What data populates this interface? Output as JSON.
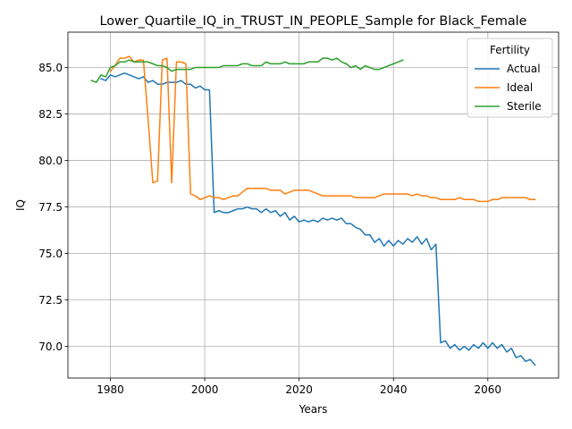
{
  "chart_data": {
    "type": "line",
    "title": "Lower_Quartile_IQ_in_TRUST_IN_PEOPLE_Sample for Black_Female",
    "xlabel": "Years",
    "ylabel": "IQ",
    "xlim": [
      1971,
      2075
    ],
    "ylim": [
      68.3,
      86.9
    ],
    "xticks": [
      1980,
      2000,
      2020,
      2040,
      2060
    ],
    "xtick_labels": [
      "1980",
      "2000",
      "2020",
      "2040",
      "2060"
    ],
    "yticks": [
      70.0,
      72.5,
      75.0,
      77.5,
      80.0,
      82.5,
      85.0
    ],
    "ytick_labels": [
      "70.0",
      "72.5",
      "75.0",
      "77.5",
      "80.0",
      "82.5",
      "85.0"
    ],
    "grid": true,
    "legend": {
      "title": "Fertility",
      "position": "top-right"
    },
    "series": [
      {
        "name": "Actual",
        "color": "#1f77b4",
        "x": [
          1978,
          1979,
          1980,
          1981,
          1982,
          1983,
          1984,
          1985,
          1986,
          1987,
          1988,
          1989,
          1990,
          1991,
          1992,
          1993,
          1994,
          1995,
          1996,
          1997,
          1998,
          1999,
          2000,
          2001,
          2002,
          2003,
          2004,
          2005,
          2006,
          2007,
          2008,
          2009,
          2010,
          2011,
          2012,
          2013,
          2014,
          2015,
          2016,
          2017,
          2018,
          2019,
          2020,
          2021,
          2022,
          2023,
          2024,
          2025,
          2026,
          2027,
          2028,
          2029,
          2030,
          2031,
          2032,
          2033,
          2034,
          2035,
          2036,
          2037,
          2038,
          2039,
          2040,
          2041,
          2042,
          2043,
          2044,
          2045,
          2046,
          2047,
          2048,
          2049,
          2050,
          2051,
          2052,
          2053,
          2054,
          2055,
          2056,
          2057,
          2058,
          2059,
          2060,
          2061,
          2062,
          2063,
          2064,
          2065,
          2066,
          2067,
          2068,
          2069,
          2070
        ],
        "y": [
          84.4,
          84.3,
          84.6,
          84.5,
          84.6,
          84.7,
          84.6,
          84.5,
          84.4,
          84.5,
          84.2,
          84.3,
          84.1,
          84.1,
          84.2,
          84.2,
          84.2,
          84.3,
          84.1,
          84.1,
          83.9,
          84.0,
          83.8,
          83.8,
          77.2,
          77.3,
          77.2,
          77.2,
          77.3,
          77.4,
          77.4,
          77.5,
          77.4,
          77.4,
          77.2,
          77.4,
          77.2,
          77.3,
          77.0,
          77.2,
          76.8,
          77.0,
          76.7,
          76.8,
          76.7,
          76.8,
          76.7,
          76.9,
          76.8,
          76.9,
          76.8,
          76.9,
          76.6,
          76.6,
          76.4,
          76.3,
          76.0,
          76.0,
          75.6,
          75.8,
          75.4,
          75.7,
          75.4,
          75.7,
          75.5,
          75.8,
          75.6,
          75.9,
          75.5,
          75.8,
          75.2,
          75.5,
          70.2,
          70.3,
          69.9,
          70.1,
          69.8,
          70.0,
          69.8,
          70.1,
          69.9,
          70.2,
          69.9,
          70.2,
          69.9,
          70.1,
          69.7,
          69.9,
          69.4,
          69.5,
          69.2,
          69.3,
          69.0
        ]
      },
      {
        "name": "Ideal",
        "color": "#ff7f0e",
        "x": [
          1980,
          1981,
          1982,
          1983,
          1984,
          1985,
          1986,
          1987,
          1988,
          1989,
          1990,
          1991,
          1992,
          1993,
          1994,
          1995,
          1996,
          1997,
          1998,
          1999,
          2000,
          2001,
          2002,
          2003,
          2004,
          2005,
          2006,
          2007,
          2008,
          2009,
          2010,
          2011,
          2012,
          2013,
          2014,
          2015,
          2016,
          2017,
          2018,
          2019,
          2020,
          2021,
          2022,
          2023,
          2024,
          2025,
          2026,
          2027,
          2028,
          2029,
          2030,
          2031,
          2032,
          2033,
          2034,
          2035,
          2036,
          2037,
          2038,
          2039,
          2040,
          2041,
          2042,
          2043,
          2044,
          2045,
          2046,
          2047,
          2048,
          2049,
          2050,
          2051,
          2052,
          2053,
          2054,
          2055,
          2056,
          2057,
          2058,
          2059,
          2060,
          2061,
          2062,
          2063,
          2064,
          2065,
          2066,
          2067,
          2068,
          2069,
          2070
        ],
        "y": [
          84.8,
          85.1,
          85.5,
          85.5,
          85.6,
          85.3,
          85.4,
          85.4,
          82.2,
          78.8,
          78.9,
          85.4,
          85.5,
          78.8,
          85.3,
          85.3,
          85.2,
          78.2,
          78.1,
          77.9,
          78.0,
          78.1,
          78.0,
          78.0,
          77.9,
          78.0,
          78.1,
          78.1,
          78.3,
          78.5,
          78.5,
          78.5,
          78.5,
          78.5,
          78.4,
          78.4,
          78.4,
          78.2,
          78.3,
          78.4,
          78.4,
          78.4,
          78.4,
          78.3,
          78.2,
          78.1,
          78.1,
          78.1,
          78.1,
          78.1,
          78.1,
          78.1,
          78.0,
          78.0,
          78.0,
          78.0,
          78.0,
          78.1,
          78.2,
          78.2,
          78.2,
          78.2,
          78.2,
          78.2,
          78.1,
          78.2,
          78.1,
          78.1,
          78.0,
          78.0,
          77.9,
          77.9,
          77.9,
          77.9,
          78.0,
          77.9,
          77.9,
          77.9,
          77.8,
          77.8,
          77.8,
          77.9,
          77.9,
          78.0,
          78.0,
          78.0,
          78.0,
          78.0,
          78.0,
          77.9,
          77.9
        ]
      },
      {
        "name": "Sterile",
        "color": "#2ca02c",
        "x": [
          1976,
          1977,
          1978,
          1979,
          1980,
          1981,
          1982,
          1983,
          1984,
          1985,
          1986,
          1987,
          1988,
          1989,
          1990,
          1991,
          1992,
          1993,
          1994,
          1995,
          1996,
          1997,
          1998,
          1999,
          2000,
          2001,
          2002,
          2003,
          2004,
          2005,
          2006,
          2007,
          2008,
          2009,
          2010,
          2011,
          2012,
          2013,
          2014,
          2015,
          2016,
          2017,
          2018,
          2019,
          2020,
          2021,
          2022,
          2023,
          2024,
          2025,
          2026,
          2027,
          2028,
          2029,
          2030,
          2031,
          2032,
          2033,
          2034,
          2035,
          2036,
          2037,
          2038,
          2039,
          2040,
          2041,
          2042
        ],
        "y": [
          84.3,
          84.2,
          84.6,
          84.5,
          85.0,
          85.1,
          85.3,
          85.3,
          85.4,
          85.3,
          85.3,
          85.3,
          85.3,
          85.2,
          85.1,
          85.1,
          85.0,
          84.8,
          84.9,
          84.9,
          84.9,
          84.9,
          85.0,
          85.0,
          85.0,
          85.0,
          85.0,
          85.0,
          85.1,
          85.1,
          85.1,
          85.1,
          85.2,
          85.2,
          85.1,
          85.1,
          85.1,
          85.3,
          85.2,
          85.2,
          85.2,
          85.3,
          85.2,
          85.2,
          85.2,
          85.2,
          85.3,
          85.3,
          85.3,
          85.5,
          85.5,
          85.4,
          85.5,
          85.3,
          85.2,
          85.0,
          85.1,
          84.9,
          85.1,
          85.0,
          84.9,
          84.9,
          85.0,
          85.1,
          85.2,
          85.3,
          85.4
        ]
      }
    ]
  }
}
